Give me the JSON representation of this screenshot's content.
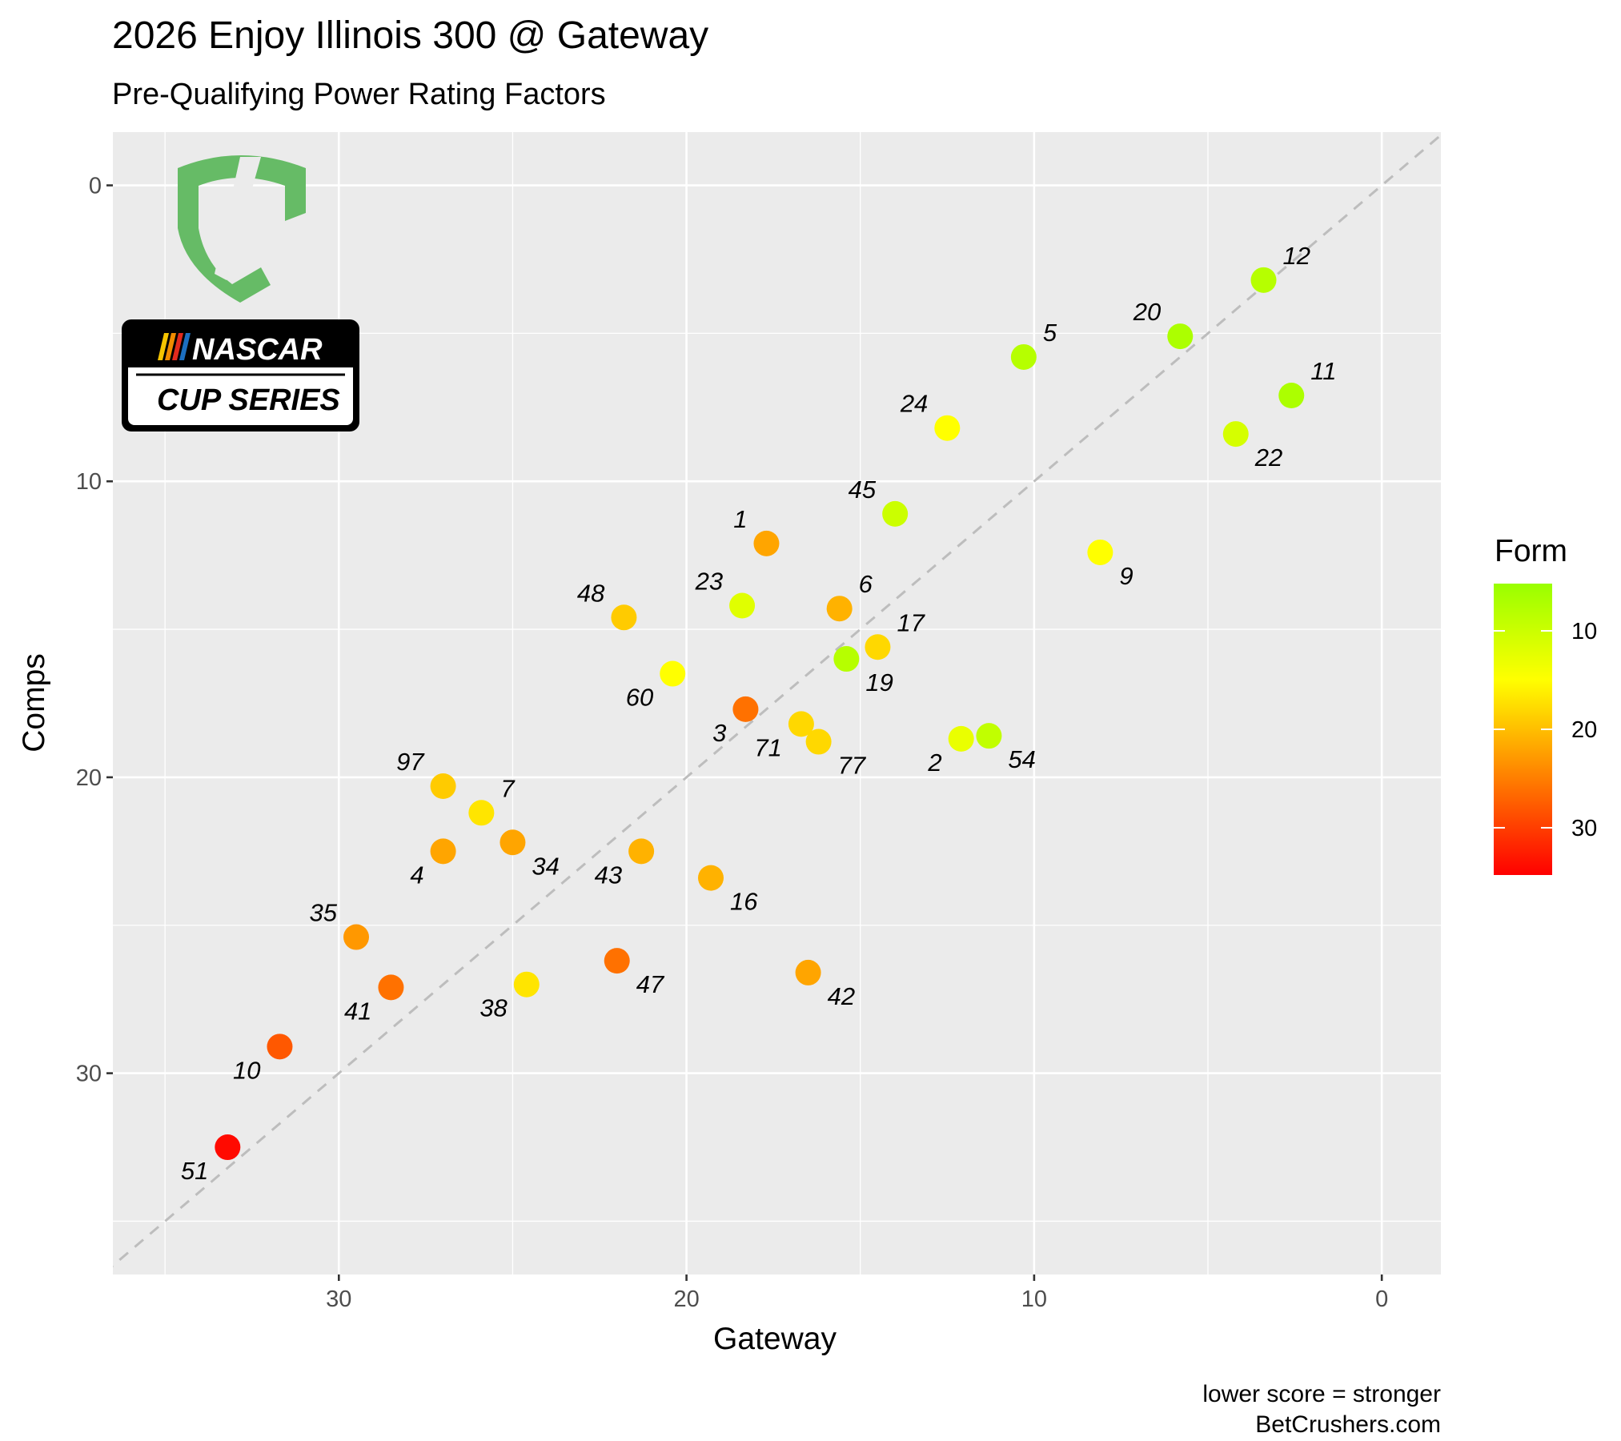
{
  "chart_data": {
    "type": "scatter",
    "title": "2026 Enjoy Illinois 300 @ Gateway",
    "subtitle": "Pre-Qualifying Power Rating Factors",
    "xlabel": "Gateway",
    "ylabel": "Comps",
    "xlim": [
      36.5,
      -1.7
    ],
    "ylim": [
      36.8,
      -1.8
    ],
    "x_reversed": true,
    "y_reversed": true,
    "x_ticks": [
      30,
      20,
      10,
      0
    ],
    "y_ticks": [
      0,
      10,
      20,
      30
    ],
    "grid": true,
    "reference_line": "y = x (dashed)",
    "legend": {
      "title": "Form",
      "position": "right",
      "ticks": [
        10,
        20,
        30
      ],
      "range": [
        5.2,
        34.8
      ],
      "colors": {
        "low": "#99ff00",
        "mid": "#ffff00",
        "high": "#ff0000"
      }
    },
    "caption": [
      "lower score = stronger",
      "BetCrushers.com"
    ],
    "points": [
      {
        "label": "12",
        "x": 3.4,
        "y": 3.2,
        "form": 8
      },
      {
        "label": "20",
        "x": 5.8,
        "y": 5.1,
        "form": 7
      },
      {
        "label": "5",
        "x": 10.3,
        "y": 5.8,
        "form": 8
      },
      {
        "label": "11",
        "x": 2.6,
        "y": 7.1,
        "form": 7
      },
      {
        "label": "22",
        "x": 4.2,
        "y": 8.4,
        "form": 11
      },
      {
        "label": "24",
        "x": 12.5,
        "y": 8.2,
        "form": 15
      },
      {
        "label": "45",
        "x": 14.0,
        "y": 11.1,
        "form": 10
      },
      {
        "label": "1",
        "x": 17.7,
        "y": 12.1,
        "form": 22
      },
      {
        "label": "9",
        "x": 8.1,
        "y": 12.4,
        "form": 15
      },
      {
        "label": "23",
        "x": 18.4,
        "y": 14.2,
        "form": 12
      },
      {
        "label": "6",
        "x": 15.6,
        "y": 14.3,
        "form": 21
      },
      {
        "label": "48",
        "x": 21.8,
        "y": 14.6,
        "form": 19
      },
      {
        "label": "17",
        "x": 14.5,
        "y": 15.6,
        "form": 18
      },
      {
        "label": "19",
        "x": 15.4,
        "y": 16.0,
        "form": 8
      },
      {
        "label": "60",
        "x": 20.4,
        "y": 16.5,
        "form": 15
      },
      {
        "label": "3",
        "x": 18.3,
        "y": 17.7,
        "form": 26
      },
      {
        "label": "71",
        "x": 16.7,
        "y": 18.2,
        "form": 18
      },
      {
        "label": "77",
        "x": 16.2,
        "y": 18.8,
        "form": 18
      },
      {
        "label": "2",
        "x": 12.1,
        "y": 18.7,
        "form": 13
      },
      {
        "label": "54",
        "x": 11.3,
        "y": 18.6,
        "form": 9
      },
      {
        "label": "97",
        "x": 27.0,
        "y": 20.3,
        "form": 19
      },
      {
        "label": "7",
        "x": 25.9,
        "y": 21.2,
        "form": 17
      },
      {
        "label": "34",
        "x": 25.0,
        "y": 22.2,
        "form": 22
      },
      {
        "label": "4",
        "x": 27.0,
        "y": 22.5,
        "form": 22
      },
      {
        "label": "43",
        "x": 21.3,
        "y": 22.5,
        "form": 21
      },
      {
        "label": "16",
        "x": 19.3,
        "y": 23.4,
        "form": 21
      },
      {
        "label": "35",
        "x": 29.5,
        "y": 25.4,
        "form": 23
      },
      {
        "label": "47",
        "x": 22.0,
        "y": 26.2,
        "form": 26
      },
      {
        "label": "42",
        "x": 16.5,
        "y": 26.6,
        "form": 22
      },
      {
        "label": "41",
        "x": 28.5,
        "y": 27.1,
        "form": 26
      },
      {
        "label": "38",
        "x": 24.6,
        "y": 27.0,
        "form": 17
      },
      {
        "label": "10",
        "x": 31.7,
        "y": 29.1,
        "form": 28
      },
      {
        "label": "51",
        "x": 33.2,
        "y": 32.5,
        "form": 34
      }
    ]
  },
  "logos": {
    "brand_mark": "BC",
    "nascar_top": "NASCAR",
    "nascar_bottom": "CUP SERIES"
  }
}
